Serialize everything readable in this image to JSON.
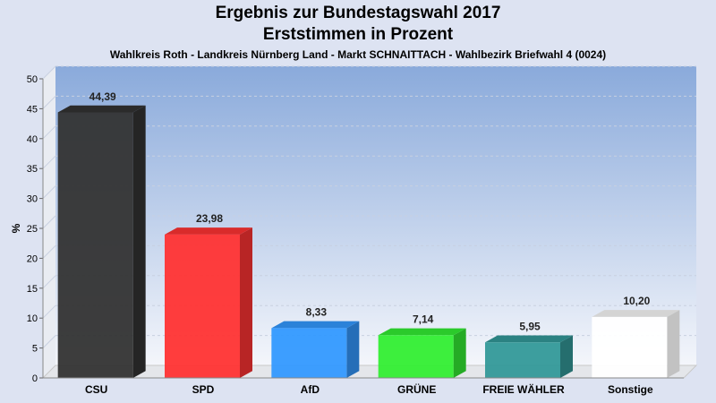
{
  "header": {
    "title_line1": "Ergebnis zur Bundestagswahl 2017",
    "title_line2": "Erststimmen in Prozent",
    "subtitle": "Wahlkreis Roth - Landkreis Nürnberg Land - Markt SCHNAITTACH - Wahlbezirk Briefwahl 4 (0024)"
  },
  "chart_data": {
    "type": "bar",
    "title": "Ergebnis zur Bundestagswahl 2017",
    "subtitle": "Erststimmen in Prozent",
    "ylabel": "%",
    "xlabel": "",
    "ylim": [
      0,
      50
    ],
    "yticks": [
      0,
      5,
      10,
      15,
      20,
      25,
      30,
      35,
      40,
      45,
      50
    ],
    "grid": true,
    "categories": [
      "CSU",
      "SPD",
      "AfD",
      "GRÜNE",
      "FREIE WÄHLER",
      "Sonstige"
    ],
    "values": [
      44.39,
      23.98,
      8.33,
      7.14,
      5.95,
      10.2
    ],
    "value_labels": [
      "44,39",
      "23,98",
      "8,33",
      "7,14",
      "5,95",
      "10,20"
    ],
    "colors": [
      "#333333",
      "#ff3333",
      "#3399ff",
      "#33ee33",
      "#339999",
      "#ffffff"
    ]
  }
}
